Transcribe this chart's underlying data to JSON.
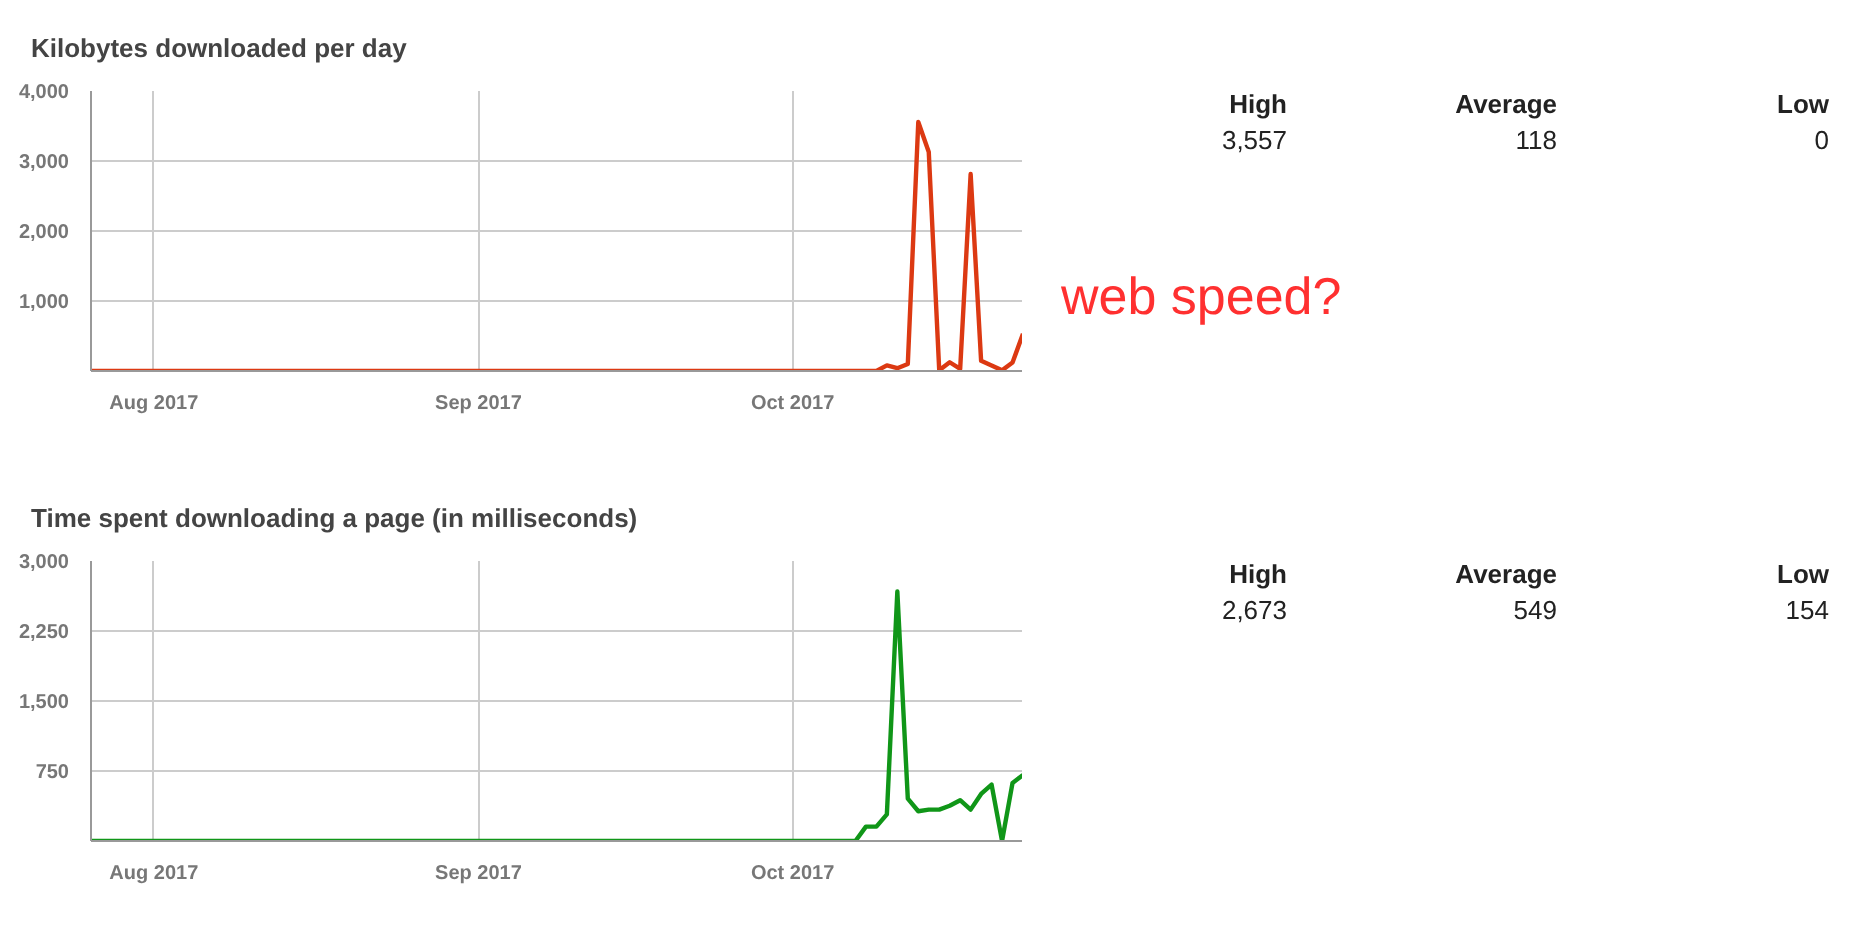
{
  "chart_data": [
    {
      "type": "line",
      "title": "Kilobytes downloaded per day",
      "annotations": [
        "High",
        "Average",
        "Low",
        "3,557",
        "118",
        "0",
        "web speed?"
      ],
      "x": [
        "2017-07-26",
        "2017-10-08",
        "2017-10-09",
        "2017-10-10",
        "2017-10-11",
        "2017-10-12",
        "2017-10-13",
        "2017-10-14",
        "2017-10-15",
        "2017-10-16",
        "2017-10-17",
        "2017-10-18",
        "2017-10-19",
        "2017-10-20",
        "2017-10-21",
        "2017-10-22",
        "2017-10-23"
      ],
      "series": [
        {
          "color": "#dc3912",
          "values": [
            0,
            0,
            0,
            80,
            40,
            100,
            3557,
            3130,
            10,
            125,
            30,
            2814,
            146,
            80,
            10,
            120,
            532
          ]
        }
      ],
      "xlim": [
        "2017-07-26",
        "2017-10-23"
      ],
      "xticks": [
        {
          "value": "2017-08-01",
          "label": "Aug 2017"
        },
        {
          "value": "2017-09-01",
          "label": "Sep 2017"
        },
        {
          "value": "2017-10-01",
          "label": "Oct 2017"
        }
      ],
      "ylim": [
        0,
        4000
      ],
      "yticks": [
        {
          "value": 0,
          "label": null
        },
        {
          "value": 1000,
          "label": "1,000"
        },
        {
          "value": 2000,
          "label": "2,000"
        },
        {
          "value": 3000,
          "label": "3,000"
        },
        {
          "value": 4000,
          "label": "4,000"
        }
      ],
      "grid": true
    },
    {
      "type": "line",
      "title": "Time spent downloading a page (in milliseconds)",
      "annotations": [
        "High",
        "Average",
        "Low",
        "2,673",
        "549",
        "154"
      ],
      "x": [
        "2017-07-26",
        "2017-10-07",
        "2017-10-08",
        "2017-10-09",
        "2017-10-10",
        "2017-10-11",
        "2017-10-12",
        "2017-10-13",
        "2017-10-14",
        "2017-10-15",
        "2017-10-16",
        "2017-10-17",
        "2017-10-18",
        "2017-10-19",
        "2017-10-20",
        "2017-10-21",
        "2017-10-22",
        "2017-10-23"
      ],
      "series": [
        {
          "color": "#109618",
          "values": [
            0,
            0,
            154,
            154,
            285,
            2673,
            454,
            319,
            336,
            336,
            378,
            437,
            336,
            504,
            605,
            0,
            622,
            706
          ]
        }
      ],
      "xlim": [
        "2017-07-26",
        "2017-10-23"
      ],
      "xticks": [
        {
          "value": "2017-08-01",
          "label": "Aug 2017"
        },
        {
          "value": "2017-09-01",
          "label": "Sep 2017"
        },
        {
          "value": "2017-10-01",
          "label": "Oct 2017"
        }
      ],
      "ylim": [
        0,
        3000
      ],
      "yticks": [
        {
          "value": 0,
          "label": null
        },
        {
          "value": 750,
          "label": "750"
        },
        {
          "value": 1500,
          "label": "1,500"
        },
        {
          "value": 2250,
          "label": "2,250"
        },
        {
          "value": 3000,
          "label": "3,000"
        }
      ],
      "grid": true
    }
  ]
}
